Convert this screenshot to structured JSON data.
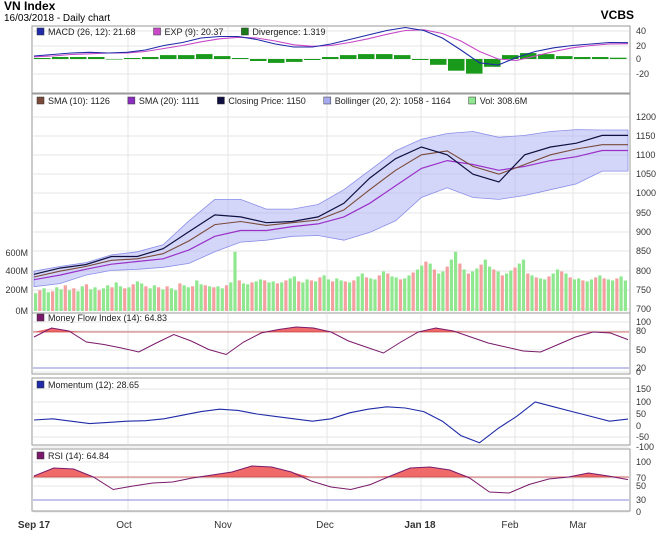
{
  "header": {
    "title": "VN Index",
    "subtitle": "16/03/2018 - Daily chart",
    "brand": "VCBS"
  },
  "x_axis": {
    "labels": [
      "Sep 17",
      "Oct",
      "Nov",
      "Dec",
      "Jan 18",
      "Feb",
      "Mar"
    ],
    "bold": [
      "Sep 17",
      "Jan 18"
    ]
  },
  "panels": {
    "macd": {
      "legend": [
        {
          "text": "MACD (26, 12): 21.68",
          "color": "#1f2ba8"
        },
        {
          "text": "EXP (9): 20.37",
          "color": "#c848c8"
        },
        {
          "text": "Divergence: 1.319",
          "color": "#1a7a1a"
        }
      ],
      "ticks": [
        "40",
        "20",
        "0",
        "-20"
      ]
    },
    "price": {
      "legend": [
        {
          "text": "SMA (10): 1126",
          "color": "#7a4a3a"
        },
        {
          "text": "SMA (20): 1111",
          "color": "#8a2fc0"
        },
        {
          "text": "Closing Price: 1150",
          "color": "#101040"
        },
        {
          "text": "Bollinger (20, 2): 1058 - 1164",
          "color": "#a8aaf0"
        },
        {
          "text": "Vol: 308.6M",
          "color": "#8fe88f"
        }
      ],
      "ticks": [
        "1200",
        "1150",
        "1100",
        "1050",
        "1000",
        "950",
        "900",
        "850",
        "800",
        "750",
        "700"
      ],
      "vol_ticks": [
        "600M",
        "400M",
        "200M",
        "0M"
      ]
    },
    "mfi": {
      "legend": [
        {
          "text": "Money Flow Index (14): 64.83",
          "color": "#7a1a6a"
        }
      ],
      "ticks": [
        "100",
        "80",
        "50",
        "20",
        "0"
      ]
    },
    "momentum": {
      "legend": [
        {
          "text": "Momentum (12): 28.65",
          "color": "#1f2ba8"
        }
      ],
      "ticks": [
        "150",
        "100",
        "50",
        "0",
        "-50",
        "-100"
      ]
    },
    "rsi": {
      "legend": [
        {
          "text": "RSI (14): 64.84",
          "color": "#7a1a6a"
        }
      ],
      "ticks": [
        "100",
        "70",
        "50",
        "30",
        "0"
      ]
    }
  },
  "chart_data": [
    {
      "type": "line",
      "panel": "price",
      "x": [
        "2017-09-18",
        "2017-10-02",
        "2017-10-16",
        "2017-10-30",
        "2017-11-06",
        "2017-11-13",
        "2017-11-20",
        "2017-11-27",
        "2017-12-04",
        "2017-12-11",
        "2017-12-18",
        "2017-12-25",
        "2018-01-02",
        "2018-01-08",
        "2018-01-15",
        "2018-01-22",
        "2018-01-29",
        "2018-02-05",
        "2018-02-12",
        "2018-02-20",
        "2018-02-26",
        "2018-03-05",
        "2018-03-12",
        "2018-03-16"
      ],
      "ylim": [
        700,
        1200
      ],
      "series": [
        {
          "name": "Closing Price",
          "values": [
            792,
            808,
            817,
            838,
            838,
            858,
            902,
            945,
            940,
            925,
            928,
            940,
            975,
            1040,
            1090,
            1120,
            1100,
            1050,
            1030,
            1100,
            1120,
            1130,
            1150,
            1150
          ]
        },
        {
          "name": "SMA (10)",
          "values": [
            785,
            800,
            812,
            828,
            832,
            845,
            878,
            920,
            928,
            918,
            925,
            932,
            958,
            1010,
            1060,
            1100,
            1110,
            1070,
            1050,
            1075,
            1100,
            1115,
            1126,
            1126
          ]
        },
        {
          "name": "SMA (20)",
          "values": [
            778,
            790,
            805,
            818,
            825,
            832,
            855,
            890,
            905,
            905,
            915,
            922,
            940,
            975,
            1020,
            1065,
            1085,
            1075,
            1060,
            1070,
            1085,
            1095,
            1111,
            1111
          ]
        },
        {
          "name": "Bollinger upper",
          "values": [
            800,
            812,
            822,
            842,
            850,
            868,
            930,
            985,
            985,
            960,
            960,
            972,
            1010,
            1060,
            1110,
            1140,
            1155,
            1160,
            1145,
            1150,
            1160,
            1165,
            1164,
            1164
          ]
        },
        {
          "name": "Bollinger lower",
          "values": [
            760,
            768,
            790,
            802,
            805,
            810,
            820,
            850,
            875,
            880,
            890,
            892,
            880,
            900,
            930,
            990,
            1015,
            990,
            985,
            995,
            1010,
            1025,
            1058,
            1058
          ]
        }
      ]
    },
    {
      "type": "bar",
      "panel": "volume",
      "ylim": [
        0,
        800
      ],
      "values": [
        180,
        210,
        230,
        190,
        200,
        240,
        220,
        260,
        210,
        230,
        200,
        250,
        270,
        220,
        240,
        210,
        230,
        260,
        240,
        290,
        250,
        230,
        240,
        270,
        300,
        280,
        250,
        230,
        260,
        240,
        220,
        250,
        230,
        210,
        280,
        260,
        240,
        250,
        310,
        270,
        260,
        250,
        240,
        250,
        230,
        260,
        290,
        600,
        310,
        280,
        270,
        290,
        300,
        320,
        310,
        290,
        300,
        280,
        290,
        310,
        330,
        350,
        300,
        290,
        320,
        310,
        300,
        340,
        360,
        320,
        300,
        330,
        310,
        300,
        290,
        310,
        350,
        380,
        340,
        330,
        320,
        360,
        400,
        380,
        350,
        340,
        320,
        330,
        360,
        390,
        420,
        460,
        500,
        480,
        420,
        380,
        400,
        450,
        520,
        600,
        480,
        420,
        380,
        400,
        430,
        470,
        520,
        450,
        420,
        400,
        360,
        380,
        410,
        440,
        480,
        520,
        380,
        360,
        340,
        330,
        320,
        350,
        380,
        420,
        400,
        380,
        340,
        320,
        330,
        310,
        300,
        320,
        340,
        360,
        330,
        320,
        310,
        330,
        350,
        309
      ],
      "up": [
        1,
        0,
        1,
        1,
        0,
        1,
        1,
        0,
        1,
        0,
        1,
        1,
        0,
        1,
        1,
        0,
        1,
        1,
        0,
        1,
        1,
        0,
        1,
        0,
        1,
        1,
        0,
        1,
        1,
        0,
        1,
        0,
        1,
        1,
        0,
        1,
        1,
        0,
        1,
        1,
        0,
        1,
        0,
        1,
        1,
        0,
        1,
        1,
        0,
        1,
        1,
        0,
        1,
        1,
        0,
        1,
        1,
        0,
        1,
        0,
        1,
        1,
        0,
        1,
        1,
        0,
        1,
        0,
        1,
        1,
        0,
        1,
        1,
        0,
        1,
        0,
        1,
        1,
        0,
        1,
        1,
        0,
        1,
        0,
        1,
        1,
        0,
        1,
        1,
        0,
        1,
        1,
        0,
        1,
        0,
        1,
        1,
        0,
        1,
        1,
        0,
        1,
        0,
        1,
        1,
        0,
        1,
        1,
        0,
        1,
        0,
        1,
        1,
        0,
        1,
        1,
        0,
        1,
        0,
        1,
        1,
        0,
        1,
        1,
        0,
        1,
        0,
        1,
        1,
        0,
        1,
        1,
        0,
        1,
        0,
        1,
        1,
        0,
        1,
        1
      ]
    },
    {
      "type": "line",
      "panel": "macd",
      "ylim": [
        -30,
        45
      ],
      "series": [
        {
          "name": "MACD (26, 12)",
          "values": [
            4,
            6,
            8,
            9,
            8,
            9,
            12,
            18,
            22,
            28,
            30,
            30,
            26,
            20,
            16,
            16,
            20,
            26,
            32,
            38,
            42,
            38,
            28,
            12,
            -5,
            -8,
            2,
            10,
            15,
            18,
            20,
            22,
            21.68
          ]
        },
        {
          "name": "EXP (9)",
          "values": [
            3,
            4,
            6,
            7,
            8,
            8,
            10,
            14,
            18,
            23,
            27,
            29,
            28,
            24,
            19,
            17,
            18,
            22,
            27,
            33,
            38,
            39,
            34,
            24,
            10,
            0,
            -2,
            4,
            10,
            15,
            18,
            20,
            20.37
          ]
        },
        {
          "name": "Divergence",
          "values": [
            1,
            2,
            2,
            2,
            0,
            1,
            2,
            4,
            4,
            5,
            3,
            1,
            -2,
            -4,
            -3,
            -1,
            2,
            4,
            5,
            5,
            4,
            -1,
            -6,
            -12,
            -15,
            -8,
            4,
            6,
            5,
            3,
            2,
            2,
            1.319
          ]
        }
      ]
    },
    {
      "type": "line",
      "panel": "mfi",
      "ylim": [
        0,
        100
      ],
      "series": [
        {
          "name": "Money Flow Index (14)",
          "values": [
            70,
            88,
            82,
            60,
            55,
            48,
            40,
            58,
            75,
            62,
            45,
            35,
            60,
            78,
            85,
            90,
            88,
            80,
            62,
            50,
            38,
            60,
            80,
            88,
            82,
            70,
            58,
            50,
            42,
            40,
            55,
            70,
            80,
            78,
            64.83
          ]
        }
      ]
    },
    {
      "type": "line",
      "panel": "momentum",
      "ylim": [
        -100,
        150
      ],
      "series": [
        {
          "name": "Momentum (12)",
          "values": [
            25,
            30,
            20,
            10,
            15,
            20,
            22,
            30,
            45,
            60,
            70,
            65,
            50,
            40,
            30,
            20,
            30,
            55,
            70,
            80,
            75,
            60,
            20,
            -40,
            -70,
            -10,
            40,
            100,
            80,
            60,
            40,
            20,
            28.65
          ]
        }
      ]
    },
    {
      "type": "line",
      "panel": "rsi",
      "ylim": [
        0,
        100
      ],
      "series": [
        {
          "name": "RSI (14)",
          "values": [
            72,
            88,
            86,
            70,
            45,
            52,
            58,
            60,
            68,
            74,
            80,
            92,
            90,
            80,
            62,
            50,
            45,
            55,
            72,
            88,
            90,
            84,
            68,
            40,
            38,
            55,
            66,
            70,
            78,
            72,
            64.84
          ]
        }
      ]
    }
  ]
}
